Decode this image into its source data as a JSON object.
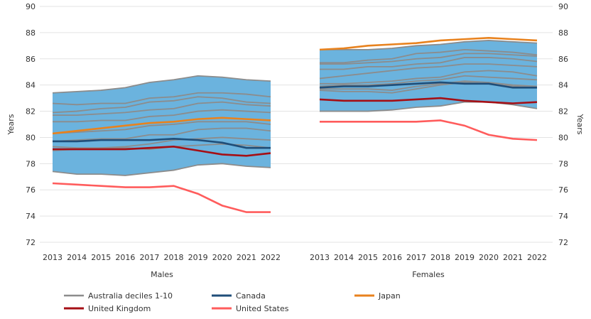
{
  "chart_data": {
    "type": "line",
    "ylabel_left": "Years",
    "ylabel_right": "Years",
    "ylim": [
      72,
      90
    ],
    "yticks": [
      "72",
      "74",
      "76",
      "78",
      "80",
      "82",
      "84",
      "86",
      "88",
      "90"
    ],
    "grid": true,
    "legend_placement": "bottom",
    "colors": {
      "band": "#6bb3de",
      "deciles": "#8c8c8c",
      "Canada": "#1f4e79",
      "Japan": "#e8821e",
      "United Kingdom": "#a50f15",
      "United States": "#ff5c5c"
    },
    "legend": [
      "Australia deciles 1-10",
      "Canada",
      "Japan",
      "United Kingdom",
      "United States"
    ],
    "panels": [
      {
        "label": "Males",
        "x": [
          "2013",
          "2014",
          "2015",
          "2016",
          "2017",
          "2018",
          "2019",
          "2020",
          "2021",
          "2022"
        ],
        "deciles": [
          [
            77.4,
            77.2,
            77.2,
            77.1,
            77.3,
            77.5,
            77.9,
            78.0,
            77.8,
            77.7
          ],
          [
            79.0,
            79.1,
            79.2,
            79.2,
            79.1,
            79.3,
            79.4,
            79.5,
            79.4,
            79.2
          ],
          [
            79.3,
            79.2,
            79.2,
            79.3,
            79.5,
            79.8,
            79.9,
            80.0,
            79.9,
            79.8
          ],
          [
            79.7,
            79.8,
            79.9,
            79.9,
            80.2,
            80.2,
            80.6,
            80.7,
            80.7,
            80.5
          ],
          [
            80.3,
            80.4,
            80.5,
            80.6,
            80.9,
            81.0,
            81.2,
            81.2,
            81.2,
            81.0
          ],
          [
            81.2,
            81.2,
            81.3,
            81.3,
            81.6,
            81.7,
            82.0,
            82.1,
            82.0,
            81.9
          ],
          [
            81.7,
            81.7,
            81.8,
            81.9,
            82.1,
            82.2,
            82.6,
            82.7,
            82.5,
            82.4
          ],
          [
            81.9,
            82.0,
            82.2,
            82.3,
            82.7,
            82.8,
            83.1,
            83.0,
            82.7,
            82.6
          ],
          [
            82.6,
            82.5,
            82.6,
            82.6,
            83.0,
            83.1,
            83.4,
            83.4,
            83.3,
            83.1
          ],
          [
            83.4,
            83.5,
            83.6,
            83.8,
            84.2,
            84.4,
            84.7,
            84.6,
            84.4,
            84.3
          ]
        ],
        "series": [
          {
            "name": "Canada",
            "values": [
              79.7,
              79.7,
              79.8,
              79.8,
              79.8,
              79.9,
              79.8,
              79.6,
              79.2,
              79.2
            ]
          },
          {
            "name": "Japan",
            "values": [
              80.3,
              80.5,
              80.7,
              80.9,
              81.1,
              81.2,
              81.4,
              81.5,
              81.4,
              81.3
            ]
          },
          {
            "name": "United Kingdom",
            "values": [
              79.1,
              79.1,
              79.1,
              79.1,
              79.2,
              79.3,
              79.0,
              78.7,
              78.6,
              78.8
            ]
          },
          {
            "name": "United States",
            "values": [
              76.5,
              76.4,
              76.3,
              76.2,
              76.2,
              76.3,
              75.7,
              74.8,
              74.3,
              74.3
            ]
          }
        ]
      },
      {
        "label": "Females",
        "x": [
          "2013",
          "2014",
          "2015",
          "2016",
          "2017",
          "2018",
          "2019",
          "2020",
          "2021",
          "2022"
        ],
        "deciles": [
          [
            82.0,
            82.0,
            82.0,
            82.1,
            82.3,
            82.4,
            82.7,
            82.7,
            82.5,
            82.2
          ],
          [
            83.6,
            83.5,
            83.5,
            83.4,
            83.7,
            84.0,
            84.2,
            84.1,
            83.9,
            83.8
          ],
          [
            83.7,
            83.7,
            83.7,
            83.6,
            83.9,
            84.1,
            84.3,
            84.2,
            84.0,
            83.9
          ],
          [
            83.9,
            84.0,
            84.0,
            84.1,
            84.3,
            84.4,
            84.7,
            84.6,
            84.5,
            84.4
          ],
          [
            84.1,
            84.1,
            84.2,
            84.3,
            84.5,
            84.6,
            85.0,
            85.1,
            85.0,
            84.7
          ],
          [
            84.5,
            84.7,
            84.9,
            85.1,
            85.3,
            85.4,
            85.6,
            85.6,
            85.5,
            85.4
          ],
          [
            85.2,
            85.2,
            85.4,
            85.4,
            85.6,
            85.7,
            86.1,
            86.1,
            86.0,
            85.8
          ],
          [
            85.6,
            85.6,
            85.7,
            85.8,
            86.0,
            86.1,
            86.4,
            86.4,
            86.3,
            86.2
          ],
          [
            85.7,
            85.7,
            85.9,
            86.0,
            86.4,
            86.5,
            86.7,
            86.6,
            86.5,
            86.3
          ],
          [
            86.7,
            86.7,
            86.7,
            86.8,
            87.0,
            87.1,
            87.3,
            87.4,
            87.3,
            87.2
          ]
        ],
        "series": [
          {
            "name": "Canada",
            "values": [
              83.8,
              83.9,
              83.9,
              84.0,
              84.1,
              84.2,
              84.1,
              84.1,
              83.8,
              83.8
            ]
          },
          {
            "name": "Japan",
            "values": [
              86.7,
              86.8,
              87.0,
              87.1,
              87.2,
              87.4,
              87.5,
              87.6,
              87.5,
              87.4
            ]
          },
          {
            "name": "United Kingdom",
            "values": [
              82.9,
              82.8,
              82.8,
              82.8,
              82.9,
              83.0,
              82.8,
              82.7,
              82.6,
              82.7
            ]
          },
          {
            "name": "United States",
            "values": [
              81.2,
              81.2,
              81.2,
              81.2,
              81.2,
              81.3,
              80.9,
              80.2,
              79.9,
              79.8
            ]
          }
        ]
      }
    ]
  }
}
